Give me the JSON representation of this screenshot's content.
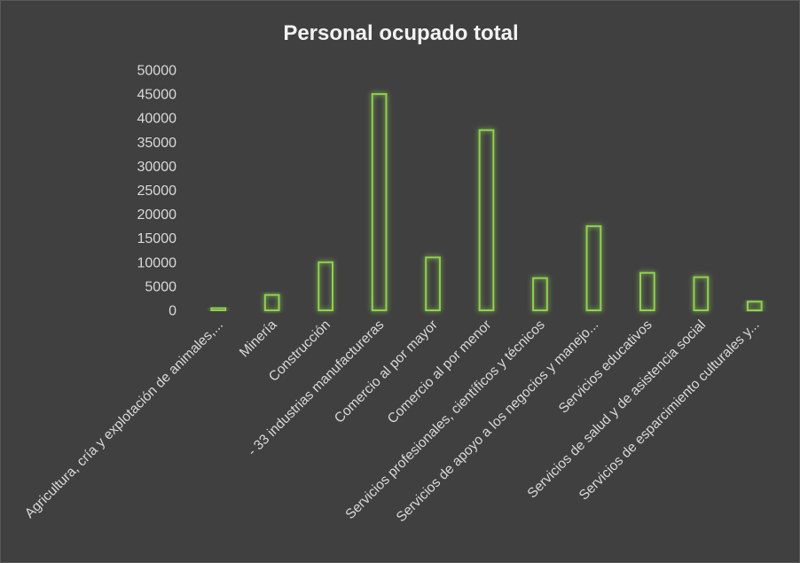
{
  "chart_data": {
    "type": "bar",
    "title": "Personal ocupado total",
    "xlabel": "",
    "ylabel": "",
    "ylim": [
      0,
      50000
    ],
    "yticks": [
      0,
      5000,
      10000,
      15000,
      20000,
      25000,
      30000,
      35000,
      40000,
      45000,
      50000
    ],
    "grid": false,
    "legend": "none",
    "categories": [
      "Agricultura, cría y explotación de animales,...",
      "Minería",
      "Construcción",
      "- 33 industrias manufactureras",
      "Comercio al por mayor",
      "Comercio al por menor",
      "Servicios profesionales, científicos y técnicos",
      "Servicios de apoyo a los negocios y manejo...",
      "Servicios educativos",
      "Servicios de salud y de asistencia social",
      "Servicios de esparcimiento culturales y..."
    ],
    "values": [
      500,
      3200,
      10000,
      45000,
      11000,
      37500,
      6700,
      17500,
      7800,
      6900,
      1800
    ],
    "colors": {
      "background": "#404040",
      "bar_outline": "#8fd14f",
      "bar_glow": "#70ad47",
      "text": "#d9d9d9"
    }
  }
}
